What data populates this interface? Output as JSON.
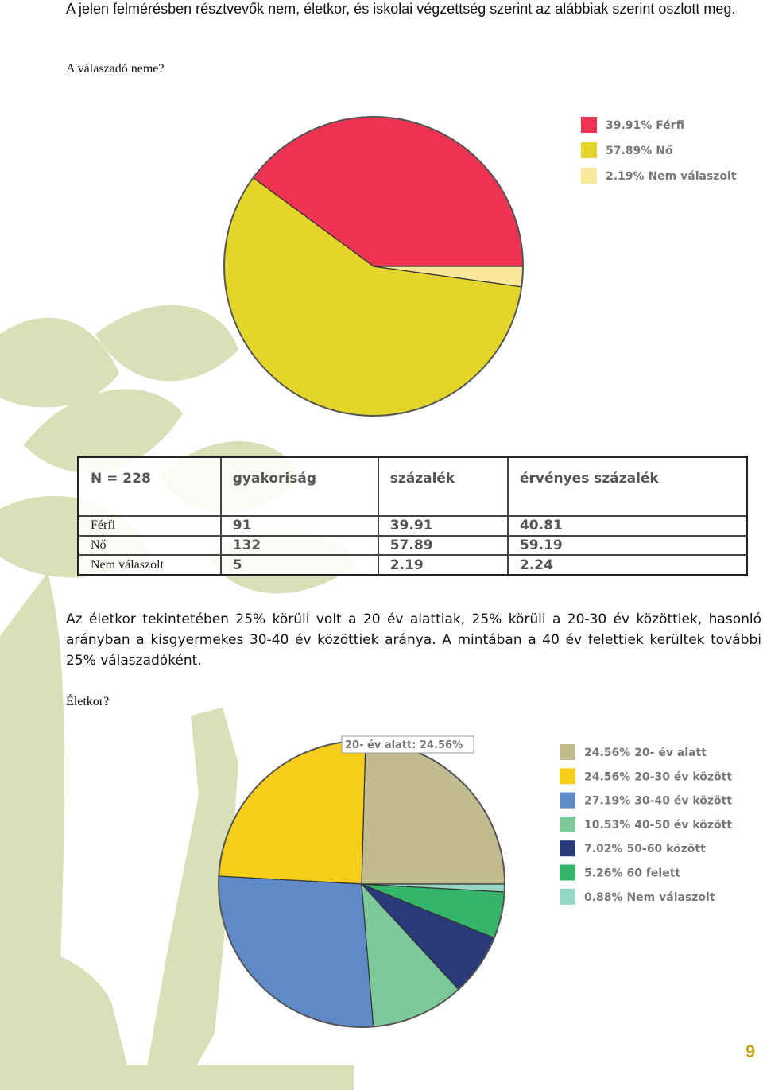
{
  "intro": "A jelen felmérésben résztvevők nem, életkor, és iskolai végzettség szerint az alábbiak szerint oszlott meg.",
  "question_1": "A válaszadó neme?",
  "table": {
    "header": [
      "N = 228",
      "gyakoriság",
      "százalék",
      "érvényes százalék"
    ],
    "rows": [
      [
        "Férfi",
        91,
        39.91,
        40.81
      ],
      [
        "Nő",
        132,
        57.89,
        59.19
      ],
      [
        "Nem válaszolt",
        5,
        2.19,
        2.24
      ]
    ]
  },
  "paragraph": "Az életkor tekintetében 25% körüli volt a 20 év alattiak, 25% körüli a 20-30 év közöttiek, hasonló arányban a kisgyermekes 30-40 év közöttiek aránya. A mintában a 40 év felettiek kerültek további 25% válaszadóként.",
  "question_2": "Életkor?",
  "page_number": "9",
  "chart_data": [
    {
      "type": "pie",
      "categories": [
        "Férfi",
        "Nő",
        "Nem válaszolt"
      ],
      "values": [
        39.91,
        57.89,
        2.19
      ],
      "value_labels": [
        "39.91%",
        "57.89%",
        "2.19%"
      ],
      "colors": [
        "#ee3352",
        "#e4d52a",
        "#fbe89a"
      ]
    },
    {
      "type": "pie",
      "categories": [
        "20- év alatt",
        "20-30 év között",
        "30-40 év között",
        "40-50 év között",
        "50-60 között",
        "60 felett",
        "Nem válaszolt"
      ],
      "values": [
        24.56,
        24.56,
        27.19,
        10.53,
        7.02,
        5.26,
        0.88
      ],
      "value_labels": [
        "24.56%",
        "24.56%",
        "27.19%",
        "10.53%",
        "7.02%",
        "5.26%",
        "0.88%"
      ],
      "colors": [
        "#c2bb90",
        "#f7cd1c",
        "#5f8ac8",
        "#7ec99a",
        "#283a7a",
        "#35b56a",
        "#95d8c8"
      ],
      "annotation": "20- év alatt: 24.56%"
    }
  ]
}
